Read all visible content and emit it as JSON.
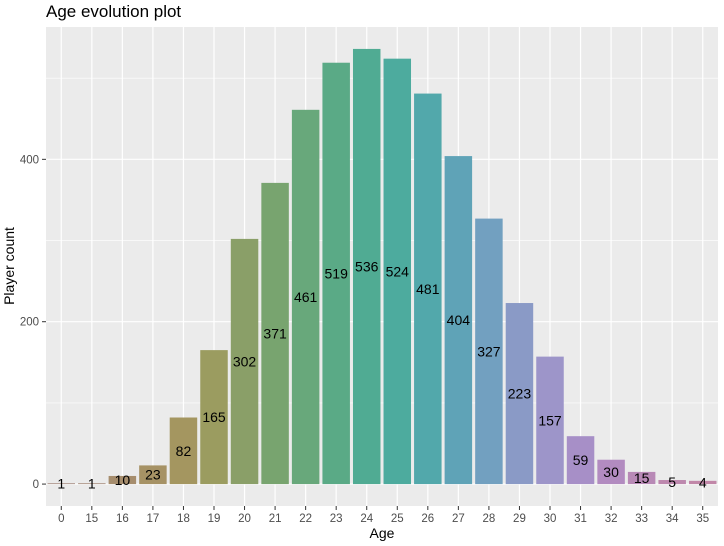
{
  "chart_data": {
    "type": "bar",
    "title": "Age evolution plot",
    "xlabel": "Age",
    "ylabel": "Player count",
    "categories": [
      "0",
      "15",
      "16",
      "17",
      "18",
      "19",
      "20",
      "21",
      "22",
      "23",
      "24",
      "25",
      "26",
      "27",
      "28",
      "29",
      "30",
      "31",
      "32",
      "33",
      "34",
      "35"
    ],
    "values": [
      1,
      1,
      10,
      23,
      82,
      165,
      302,
      371,
      461,
      519,
      536,
      524,
      481,
      404,
      327,
      223,
      157,
      59,
      30,
      15,
      5,
      4
    ],
    "yticks": [
      0,
      200,
      400
    ],
    "ylim": [
      -27,
      563
    ],
    "grid": true,
    "legend": "none",
    "colors": [
      "#a58a7f",
      "#a68b7a",
      "#a68d6d",
      "#a69265",
      "#a49660",
      "#9b9c60",
      "#8a9f68",
      "#78a46f",
      "#68a87b",
      "#5aaa86",
      "#50ab93",
      "#4dab9e",
      "#52a8ab",
      "#5fa3b7",
      "#72a0c0",
      "#8a9ac6",
      "#9d95c9",
      "#a78fc7",
      "#b28bc0",
      "#b889b6",
      "#bd88ae",
      "#c187a8"
    ],
    "panel_background": "#ebebeb",
    "grid_color": "#ffffff"
  }
}
